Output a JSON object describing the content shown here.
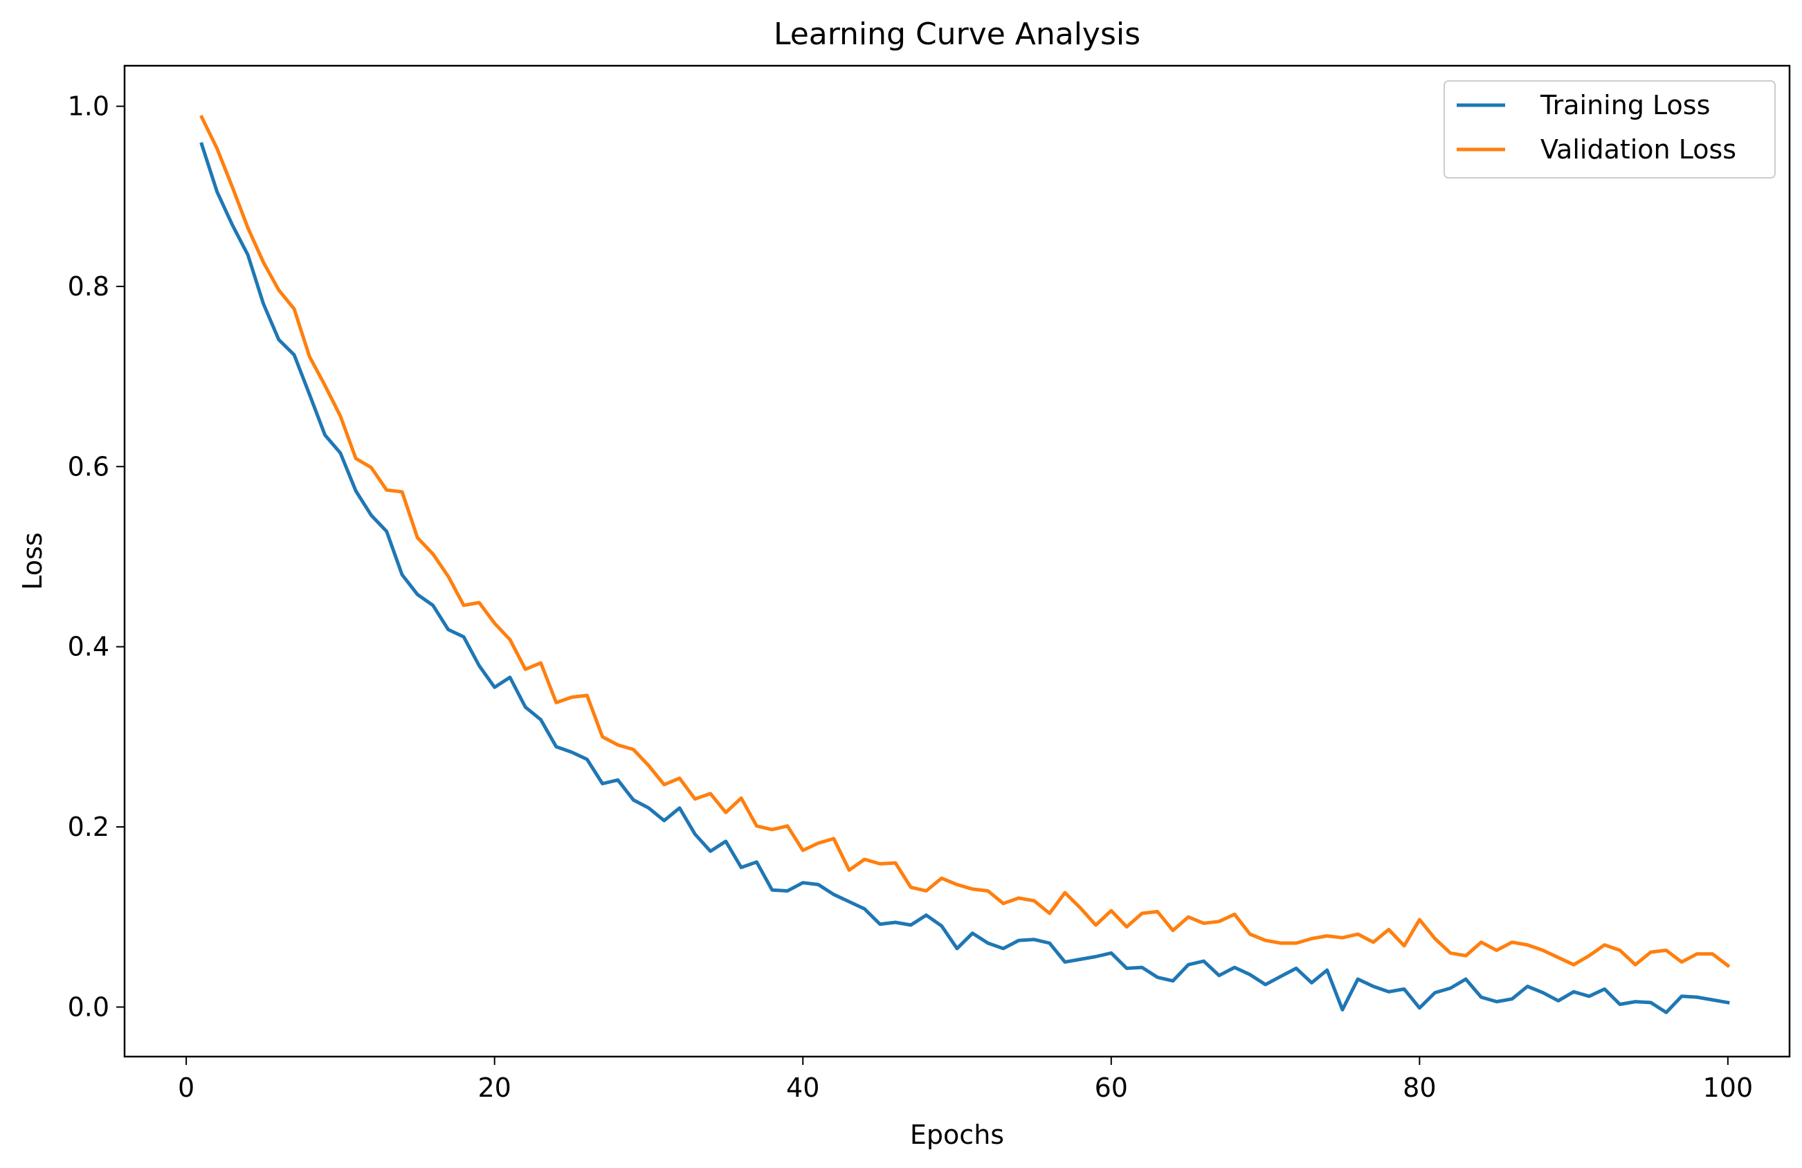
{
  "chart_data": {
    "type": "line",
    "title": "Learning Curve Analysis",
    "xlabel": "Epochs",
    "ylabel": "Loss",
    "xlim": [
      -4,
      104
    ],
    "ylim": [
      -0.055,
      1.045
    ],
    "xticks": [
      0,
      20,
      40,
      60,
      80,
      100
    ],
    "xtick_labels": [
      "0",
      "20",
      "40",
      "60",
      "80",
      "100"
    ],
    "yticks": [
      0.0,
      0.2,
      0.4,
      0.6,
      0.8,
      1.0
    ],
    "ytick_labels": [
      "0.0",
      "0.2",
      "0.4",
      "0.6",
      "0.8",
      "1.0"
    ],
    "grid": false,
    "legend_position": "upper right",
    "x": [
      1,
      2,
      3,
      4,
      5,
      6,
      7,
      8,
      9,
      10,
      11,
      12,
      13,
      14,
      15,
      16,
      17,
      18,
      19,
      20,
      21,
      22,
      23,
      24,
      25,
      26,
      27,
      28,
      29,
      30,
      31,
      32,
      33,
      34,
      35,
      36,
      37,
      38,
      39,
      40,
      41,
      42,
      43,
      44,
      45,
      46,
      47,
      48,
      49,
      50,
      51,
      52,
      53,
      54,
      55,
      56,
      57,
      58,
      59,
      60,
      61,
      62,
      63,
      64,
      65,
      66,
      67,
      68,
      69,
      70,
      71,
      72,
      73,
      74,
      75,
      76,
      77,
      78,
      79,
      80,
      81,
      82,
      83,
      84,
      85,
      86,
      87,
      88,
      89,
      90,
      91,
      92,
      93,
      94,
      95,
      96,
      97,
      98,
      99,
      100
    ],
    "series": [
      {
        "name": "Training Loss",
        "color": "#1f77b4",
        "values": [
          0.958,
          0.905,
          0.868,
          0.835,
          0.781,
          0.741,
          0.724,
          0.68,
          0.635,
          0.615,
          0.573,
          0.546,
          0.528,
          0.48,
          0.458,
          0.446,
          0.419,
          0.411,
          0.379,
          0.355,
          0.366,
          0.333,
          0.319,
          0.289,
          0.283,
          0.275,
          0.248,
          0.252,
          0.23,
          0.221,
          0.207,
          0.221,
          0.192,
          0.173,
          0.184,
          0.155,
          0.161,
          0.13,
          0.129,
          0.138,
          0.136,
          0.125,
          0.117,
          0.109,
          0.092,
          0.094,
          0.091,
          0.102,
          0.09,
          0.065,
          0.082,
          0.071,
          0.065,
          0.074,
          0.075,
          0.071,
          0.05,
          0.053,
          0.056,
          0.06,
          0.043,
          0.044,
          0.033,
          0.029,
          0.047,
          0.051,
          0.035,
          0.044,
          0.036,
          0.025,
          0.034,
          0.043,
          0.027,
          0.041,
          -0.003,
          0.031,
          0.023,
          0.017,
          0.02,
          -0.001,
          0.016,
          0.021,
          0.031,
          0.011,
          0.006,
          0.009,
          0.023,
          0.016,
          0.007,
          0.017,
          0.012,
          0.02,
          0.003,
          0.006,
          0.005,
          -0.006,
          0.012,
          0.011,
          0.008,
          0.005
        ]
      },
      {
        "name": "Validation Loss",
        "color": "#ff7f0e",
        "values": [
          0.988,
          0.953,
          0.91,
          0.865,
          0.827,
          0.796,
          0.775,
          0.722,
          0.69,
          0.656,
          0.609,
          0.599,
          0.574,
          0.572,
          0.521,
          0.503,
          0.478,
          0.446,
          0.449,
          0.426,
          0.408,
          0.375,
          0.382,
          0.338,
          0.344,
          0.346,
          0.3,
          0.291,
          0.286,
          0.268,
          0.247,
          0.254,
          0.231,
          0.237,
          0.216,
          0.232,
          0.201,
          0.197,
          0.201,
          0.174,
          0.182,
          0.187,
          0.152,
          0.164,
          0.159,
          0.16,
          0.133,
          0.129,
          0.143,
          0.136,
          0.131,
          0.129,
          0.115,
          0.121,
          0.118,
          0.104,
          0.127,
          0.11,
          0.091,
          0.107,
          0.089,
          0.104,
          0.106,
          0.085,
          0.1,
          0.093,
          0.095,
          0.103,
          0.081,
          0.074,
          0.071,
          0.071,
          0.076,
          0.079,
          0.077,
          0.081,
          0.072,
          0.086,
          0.068,
          0.097,
          0.076,
          0.06,
          0.057,
          0.072,
          0.063,
          0.072,
          0.069,
          0.063,
          0.055,
          0.047,
          0.057,
          0.069,
          0.063,
          0.047,
          0.061,
          0.063,
          0.05,
          0.059,
          0.059,
          0.046
        ]
      }
    ]
  }
}
